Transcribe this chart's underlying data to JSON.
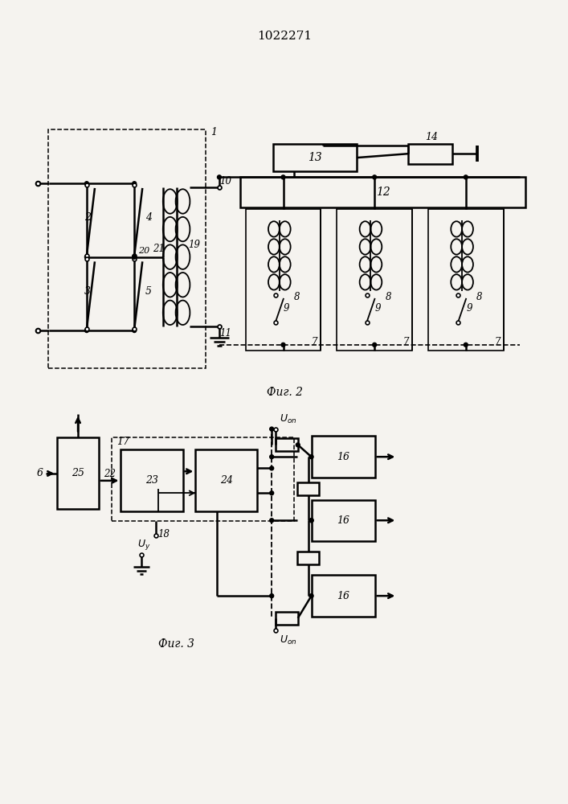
{
  "title": "1022271",
  "bg_color": "#f5f3ef",
  "line_color": "black",
  "lw": 1.3,
  "lw2": 1.8
}
